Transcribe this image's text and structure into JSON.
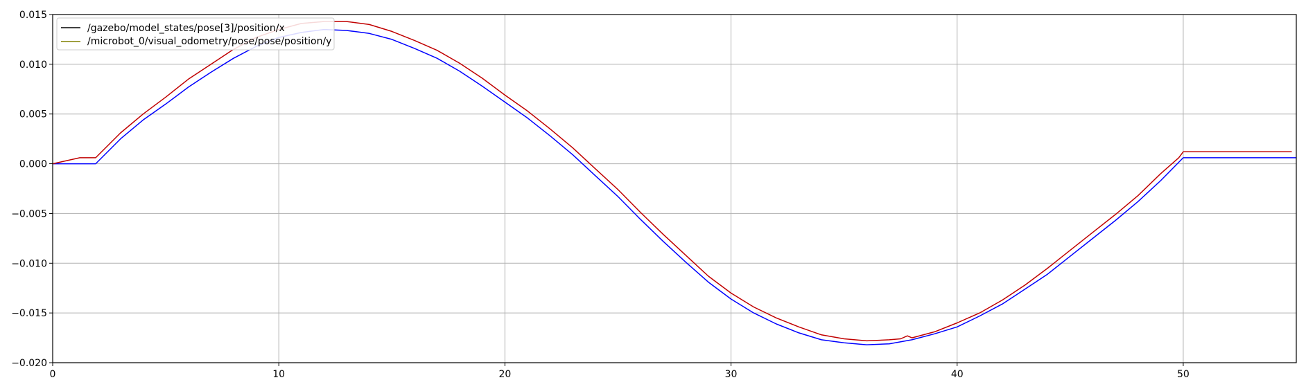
{
  "chart_data": {
    "type": "line",
    "title": "",
    "xlabel": "",
    "ylabel": "",
    "xlim": [
      0,
      55
    ],
    "ylim": [
      -0.02,
      0.015
    ],
    "grid": true,
    "legend_position": "top-left",
    "x_ticks": [
      0,
      10,
      20,
      30,
      40,
      50
    ],
    "x_tick_labels": [
      "0",
      "10",
      "20",
      "30",
      "40",
      "50"
    ],
    "y_ticks": [
      0.015,
      0.01,
      0.005,
      0.0,
      -0.005,
      -0.01,
      -0.015,
      -0.02
    ],
    "y_tick_labels": [
      "0.015",
      "0.010",
      "0.005",
      "0.000",
      "−0.005",
      "−0.010",
      "−0.015",
      "−0.020"
    ],
    "legend": [
      {
        "label": "/gazebo/model_states/pose[3]/position/x",
        "color": "#000000"
      },
      {
        "label": "/microbot_0/visual_odometry/pose/pose/position/y",
        "color": "#808000"
      }
    ],
    "series": [
      {
        "color": "#0000ff",
        "x": [
          0,
          1.9,
          3,
          4,
          5,
          6,
          7,
          8,
          9,
          10,
          11,
          12,
          13,
          14,
          15,
          16,
          17,
          18,
          19,
          20,
          21,
          22,
          23,
          24,
          25,
          26,
          27,
          28,
          29,
          30,
          31,
          32,
          33,
          34,
          35,
          36,
          37,
          38,
          39,
          40,
          41,
          42,
          43,
          44,
          45,
          46,
          47,
          48,
          49,
          50,
          51,
          52,
          53,
          54,
          55
        ],
        "y": [
          0.0,
          0.0,
          0.0025,
          0.0044,
          0.006,
          0.0077,
          0.0092,
          0.0106,
          0.0118,
          0.0127,
          0.0132,
          0.0135,
          0.0134,
          0.0131,
          0.0125,
          0.0116,
          0.0106,
          0.0093,
          0.0078,
          0.0062,
          0.0046,
          0.0028,
          0.0009,
          -0.0012,
          -0.0033,
          -0.0056,
          -0.0078,
          -0.0099,
          -0.0119,
          -0.0136,
          -0.015,
          -0.0161,
          -0.017,
          -0.0177,
          -0.018,
          -0.0182,
          -0.0181,
          -0.0177,
          -0.0171,
          -0.0164,
          -0.0153,
          -0.0141,
          -0.0126,
          -0.0111,
          -0.0093,
          -0.0075,
          -0.0057,
          -0.0038,
          -0.0017,
          0.0006,
          0.0006,
          0.0006,
          0.0006,
          0.0006,
          0.0006
        ]
      },
      {
        "color": "#c00000",
        "x": [
          0,
          1.2,
          1.9,
          3,
          4,
          5,
          6,
          7,
          8,
          9,
          10,
          11,
          12,
          13,
          14,
          15,
          16,
          17,
          18,
          19,
          20,
          21,
          22,
          23,
          24,
          25,
          26,
          27,
          28,
          29,
          30,
          31,
          32,
          33,
          34,
          35,
          36,
          37,
          37.5,
          37.8,
          38,
          39,
          40,
          41,
          42,
          43,
          44,
          45,
          46,
          47,
          48,
          49,
          49.8,
          50,
          51,
          52,
          53,
          54,
          54.8
        ],
        "y": [
          0.0,
          0.0006,
          0.0006,
          0.0031,
          0.005,
          0.0067,
          0.0085,
          0.01,
          0.0115,
          0.0127,
          0.0135,
          0.0141,
          0.0143,
          0.0143,
          0.014,
          0.0133,
          0.0124,
          0.0114,
          0.0101,
          0.0086,
          0.0069,
          0.0053,
          0.0035,
          0.0016,
          -0.0005,
          -0.0026,
          -0.0049,
          -0.0071,
          -0.0092,
          -0.0113,
          -0.013,
          -0.0144,
          -0.0155,
          -0.0164,
          -0.0172,
          -0.0176,
          -0.0178,
          -0.0177,
          -0.0176,
          -0.0173,
          -0.0175,
          -0.0169,
          -0.016,
          -0.015,
          -0.0137,
          -0.0122,
          -0.0105,
          -0.0087,
          -0.0069,
          -0.0051,
          -0.0032,
          -0.001,
          0.0006,
          0.0012,
          0.0012,
          0.0012,
          0.0012,
          0.0012,
          0.0012
        ]
      }
    ]
  }
}
